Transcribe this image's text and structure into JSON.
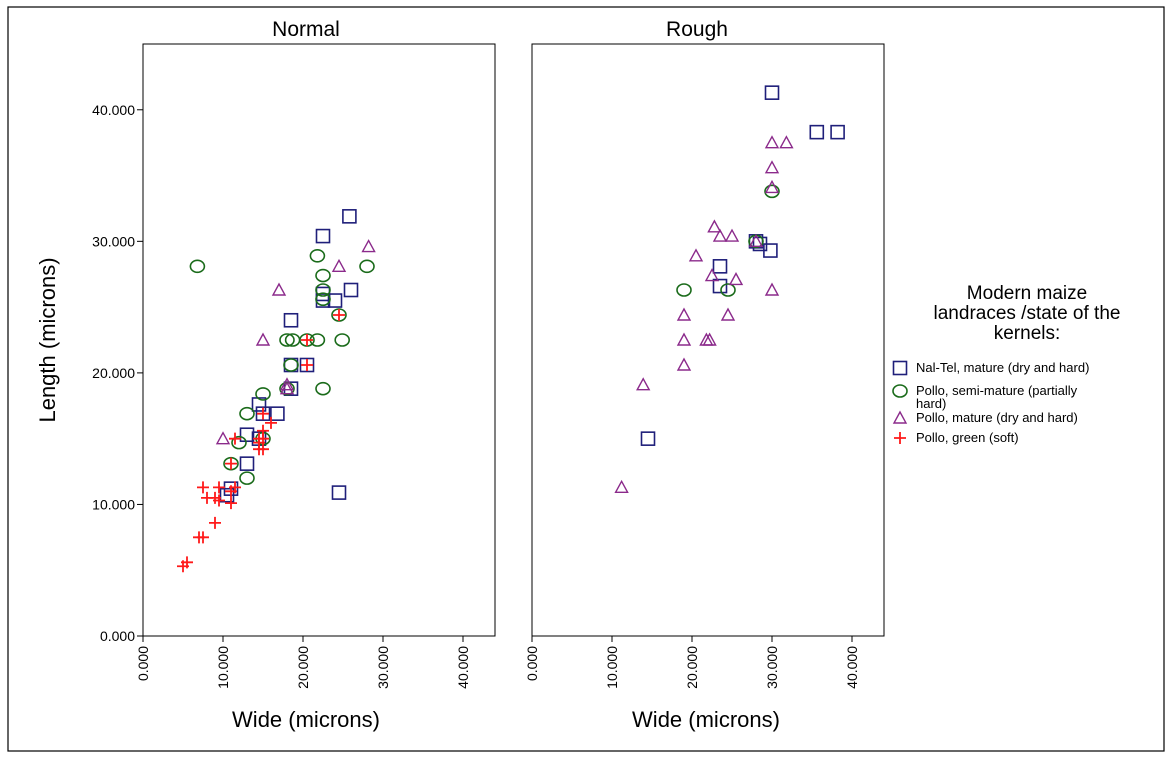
{
  "chart_data": {
    "type": "scatter",
    "xlabel": "Wide (microns)",
    "ylabel": "Length (microns)",
    "xlim": [
      0,
      44
    ],
    "ylim": [
      0,
      45
    ],
    "x_ticks": [
      "0.000",
      "10.000",
      "20.000",
      "30.000",
      "40.000"
    ],
    "y_ticks": [
      "0.000",
      "10.000",
      "20.000",
      "30.000",
      "40.000"
    ],
    "x_tick_values": [
      0,
      10,
      20,
      30,
      40
    ],
    "y_tick_values": [
      0,
      10,
      20,
      30,
      40
    ],
    "panels": [
      {
        "title": "Normal",
        "series": [
          {
            "name": "Nal-Tel, mature (dry and hard)",
            "color": "#1f1f7a",
            "marker": "square",
            "points": [
              [
                25.8,
                31.9
              ],
              [
                22.5,
                30.4
              ],
              [
                26.0,
                26.3
              ],
              [
                22.5,
                26.0
              ],
              [
                24.0,
                25.5
              ],
              [
                22.5,
                25.5
              ],
              [
                18.5,
                24.0
              ],
              [
                18.5,
                20.6
              ],
              [
                20.5,
                20.6
              ],
              [
                18.5,
                18.8
              ],
              [
                14.5,
                17.6
              ],
              [
                15.0,
                16.9
              ],
              [
                16.8,
                16.9
              ],
              [
                13.0,
                15.3
              ],
              [
                14.5,
                15.0
              ],
              [
                13.0,
                13.1
              ],
              [
                11.0,
                11.2
              ],
              [
                10.5,
                10.7
              ],
              [
                24.5,
                10.9
              ]
            ]
          },
          {
            "name": "Pollo, semi-mature (partially hard)",
            "color": "#1a6b1a",
            "marker": "circle",
            "points": [
              [
                6.8,
                28.1
              ],
              [
                21.8,
                28.9
              ],
              [
                28.0,
                28.1
              ],
              [
                22.5,
                27.4
              ],
              [
                22.5,
                26.3
              ],
              [
                22.5,
                25.6
              ],
              [
                18.0,
                22.5
              ],
              [
                18.7,
                22.5
              ],
              [
                20.5,
                22.5
              ],
              [
                21.8,
                22.5
              ],
              [
                24.9,
                22.5
              ],
              [
                18.5,
                20.6
              ],
              [
                22.5,
                18.8
              ],
              [
                15.0,
                18.4
              ],
              [
                18.0,
                18.8
              ],
              [
                13.0,
                16.9
              ],
              [
                15.0,
                15.0
              ],
              [
                12.0,
                14.7
              ],
              [
                11.0,
                13.1
              ],
              [
                13.0,
                12.0
              ],
              [
                24.5,
                24.4
              ]
            ]
          },
          {
            "name": "Pollo, mature (dry and hard)",
            "color": "#8b2a8b",
            "marker": "triangle",
            "points": [
              [
                28.2,
                29.6
              ],
              [
                24.5,
                28.1
              ],
              [
                17.0,
                26.3
              ],
              [
                15.0,
                22.5
              ],
              [
                18.0,
                19.1
              ],
              [
                18.0,
                18.8
              ],
              [
                10.0,
                15.0
              ]
            ]
          },
          {
            "name": "Pollo, green (soft)",
            "color": "#ff1a1a",
            "marker": "plus",
            "points": [
              [
                24.5,
                24.4
              ],
              [
                20.5,
                22.5
              ],
              [
                20.5,
                20.6
              ],
              [
                15.0,
                16.9
              ],
              [
                16.0,
                16.2
              ],
              [
                15.0,
                15.6
              ],
              [
                14.5,
                15.0
              ],
              [
                15.0,
                15.0
              ],
              [
                11.5,
                15.0
              ],
              [
                14.5,
                14.7
              ],
              [
                14.5,
                14.2
              ],
              [
                15.0,
                14.2
              ],
              [
                11.0,
                13.1
              ],
              [
                11.5,
                11.3
              ],
              [
                7.5,
                11.3
              ],
              [
                9.5,
                11.3
              ],
              [
                11.0,
                11.0
              ],
              [
                8.0,
                10.5
              ],
              [
                9.0,
                10.5
              ],
              [
                9.5,
                10.3
              ],
              [
                11.0,
                10.1
              ],
              [
                9.0,
                8.6
              ],
              [
                7.5,
                7.5
              ],
              [
                7.0,
                7.5
              ],
              [
                5.5,
                5.6
              ],
              [
                5.0,
                5.3
              ]
            ]
          }
        ]
      },
      {
        "title": "Rough",
        "series": [
          {
            "name": "Nal-Tel, mature (dry and hard)",
            "color": "#1f1f7a",
            "marker": "square",
            "points": [
              [
                30.0,
                41.3
              ],
              [
                35.6,
                38.3
              ],
              [
                38.2,
                38.3
              ],
              [
                28.0,
                30.0
              ],
              [
                28.5,
                29.8
              ],
              [
                29.8,
                29.3
              ],
              [
                23.5,
                28.1
              ],
              [
                23.5,
                26.6
              ],
              [
                14.5,
                15.0
              ]
            ]
          },
          {
            "name": "Pollo, semi-mature (partially hard)",
            "color": "#1a6b1a",
            "marker": "circle",
            "points": [
              [
                30.0,
                33.8
              ],
              [
                28.0,
                30.0
              ],
              [
                19.0,
                26.3
              ],
              [
                24.5,
                26.3
              ]
            ]
          },
          {
            "name": "Pollo, mature (dry and hard)",
            "color": "#8b2a8b",
            "marker": "triangle",
            "points": [
              [
                30.0,
                37.5
              ],
              [
                31.8,
                37.5
              ],
              [
                30.0,
                35.6
              ],
              [
                30.0,
                34.1
              ],
              [
                22.8,
                31.1
              ],
              [
                23.5,
                30.4
              ],
              [
                25.0,
                30.4
              ],
              [
                20.5,
                28.9
              ],
              [
                28.0,
                30.0
              ],
              [
                22.5,
                27.4
              ],
              [
                25.5,
                27.1
              ],
              [
                30.0,
                26.3
              ],
              [
                19.0,
                24.4
              ],
              [
                24.5,
                24.4
              ],
              [
                19.0,
                22.5
              ],
              [
                21.8,
                22.5
              ],
              [
                22.2,
                22.5
              ],
              [
                19.0,
                20.6
              ],
              [
                13.9,
                19.1
              ],
              [
                11.2,
                11.3
              ]
            ]
          },
          {
            "name": "Pollo, green (soft)",
            "color": "#ff1a1a",
            "marker": "plus",
            "points": []
          }
        ]
      }
    ],
    "legend": {
      "title": "Modern maize landraces /state of the kernels:",
      "title_lines": [
        "Modern maize",
        "landraces /state of the",
        "kernels:"
      ],
      "placement": "right",
      "items": [
        {
          "lines": [
            "Nal-Tel, mature (dry and hard)"
          ],
          "marker": "square",
          "color": "#1f1f7a"
        },
        {
          "lines": [
            "Pollo, semi-mature (partially",
            "hard)"
          ],
          "marker": "circle",
          "color": "#1a6b1a"
        },
        {
          "lines": [
            "Pollo, mature (dry and hard)"
          ],
          "marker": "triangle",
          "color": "#8b2a8b"
        },
        {
          "lines": [
            "Pollo, green (soft)"
          ],
          "marker": "plus",
          "color": "#ff1a1a"
        }
      ]
    }
  }
}
